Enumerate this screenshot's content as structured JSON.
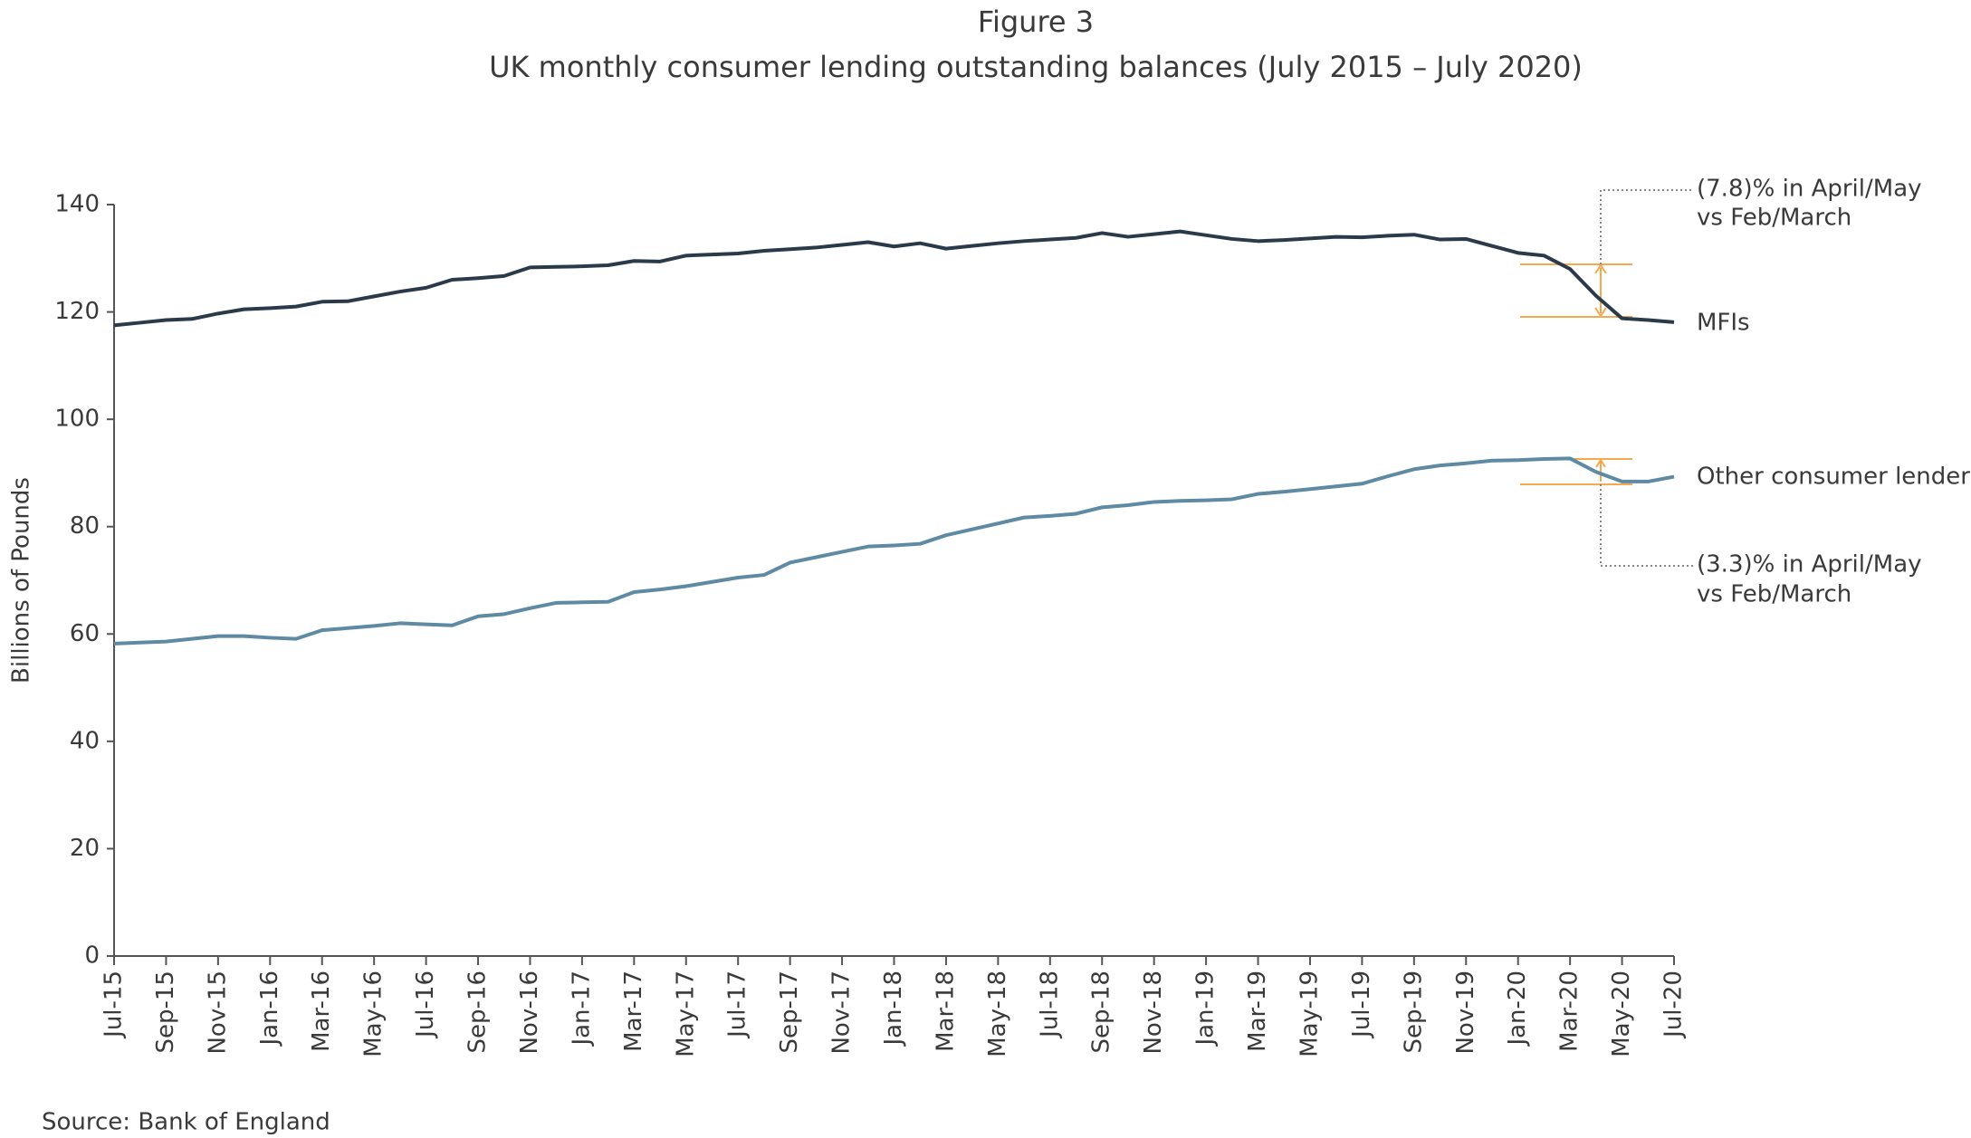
{
  "chart_data": {
    "type": "line",
    "title": "Figure 3",
    "subtitle": "UK monthly consumer lending outstanding balances (July 2015 – July 2020)",
    "ylabel": "Billions of Pounds",
    "source": "Source: Bank of England",
    "categories": [
      "Jul-15",
      null,
      "Sep-15",
      null,
      "Nov-15",
      null,
      "Jan-16",
      null,
      "Mar-16",
      null,
      "May-16",
      null,
      "Jul-16",
      null,
      "Sep-16",
      null,
      "Nov-16",
      null,
      "Jan-17",
      null,
      "Mar-17",
      null,
      "May-17",
      null,
      "Jul-17",
      null,
      "Sep-17",
      null,
      "Nov-17",
      null,
      "Jan-18",
      null,
      "Mar-18",
      null,
      "May-18",
      null,
      "Jul-18",
      null,
      "Sep-18",
      null,
      "Nov-18",
      null,
      "Jan-19",
      null,
      "Mar-19",
      null,
      "May-19",
      null,
      "Jul-19",
      null,
      "Sep-19",
      null,
      "Nov-19",
      null,
      "Jan-20",
      null,
      "Mar-20",
      null,
      "May-20",
      null,
      "Jul-20"
    ],
    "series": [
      {
        "name": "MFIs",
        "color": "#2b3a4a",
        "values": [
          117.5,
          118,
          118.5,
          118.7,
          119.7,
          120.5,
          120.7,
          121,
          121.9,
          122,
          122.9,
          123.8,
          124.5,
          126,
          126.3,
          126.7,
          128.3,
          128.4,
          128.5,
          128.7,
          129.5,
          129.4,
          130.5,
          130.7,
          130.9,
          131.4,
          131.7,
          132,
          132.5,
          133,
          132.2,
          132.8,
          131.8,
          132.3,
          132.8,
          133.2,
          133.5,
          133.8,
          134.7,
          134,
          134.5,
          135,
          134.3,
          133.6,
          133.2,
          133.4,
          133.7,
          134,
          133.9,
          134.2,
          134.4,
          133.5,
          133.6,
          132.3,
          131,
          130.5,
          128,
          123,
          118.8,
          118.5,
          118.1
        ]
      },
      {
        "name": "Other consumer lenders",
        "color": "#5f8aa3",
        "values": [
          58.2,
          58.4,
          58.6,
          59.1,
          59.6,
          59.6,
          59.3,
          59.1,
          60.7,
          61.1,
          61.5,
          62,
          61.8,
          61.6,
          63.3,
          63.7,
          64.8,
          65.8,
          65.9,
          66,
          67.8,
          68.3,
          68.9,
          69.7,
          70.5,
          71,
          73.3,
          74.3,
          75.3,
          76.3,
          76.5,
          76.8,
          78.4,
          79.5,
          80.6,
          81.7,
          82,
          82.4,
          83.6,
          84,
          84.6,
          84.8,
          84.9,
          85.1,
          86.1,
          86.5,
          87,
          87.5,
          88,
          89.4,
          90.7,
          91.4,
          91.8,
          92.3,
          92.4,
          92.6,
          92.7,
          90.2,
          88.4,
          88.4,
          89.3
        ]
      }
    ],
    "annotations": [
      [
        "(7.8)% in April/May",
        "vs Feb/March"
      ],
      [
        "(3.3)% in April/May",
        "vs Feb/March"
      ]
    ],
    "ylim": [
      0,
      140
    ],
    "yticks": [
      0,
      20,
      40,
      60,
      80,
      100,
      120,
      140
    ],
    "grid": false
  }
}
